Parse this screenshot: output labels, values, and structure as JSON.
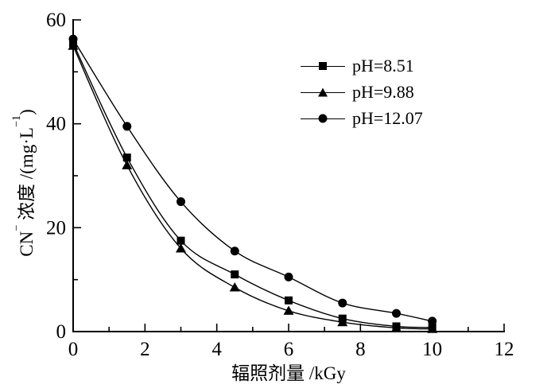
{
  "figure": {
    "background": "#ffffff",
    "ink_color": "#000000"
  },
  "chart_data": {
    "type": "line",
    "title": "",
    "xlabel": "辐照剂量 /kGy",
    "ylabel": "CN⁻ 浓度 /(mg·L⁻¹)",
    "ylabel_parts": {
      "p1": "CN",
      "s1": "−",
      "p2": " 浓度 /(mg·L",
      "s2": "−1",
      "p3": ")"
    },
    "xlim": [
      0,
      12
    ],
    "ylim": [
      0,
      60
    ],
    "x_major_ticks": [
      0,
      2,
      4,
      6,
      8,
      10,
      12
    ],
    "x_minor_ticks": [
      1,
      3,
      5,
      7,
      9,
      11
    ],
    "y_major_ticks": [
      0,
      20,
      40,
      60
    ],
    "y_minor_ticks": [
      10,
      30,
      50
    ],
    "grid": false,
    "legend_position": "upper-right-inside",
    "line_color": "#000000",
    "marker_color": "#000000",
    "x": [
      0,
      1.5,
      3,
      4.5,
      6,
      7.5,
      9,
      10
    ],
    "series": [
      {
        "name": "pH=8.51",
        "marker": "square",
        "values": [
          55.5,
          33.5,
          17.5,
          11.0,
          6.0,
          2.5,
          1.0,
          0.8
        ]
      },
      {
        "name": "pH=9.88",
        "marker": "triangle",
        "values": [
          55.0,
          32.0,
          16.0,
          8.5,
          4.0,
          1.8,
          0.7,
          0.5
        ]
      },
      {
        "name": "pH=12.07",
        "marker": "circle",
        "values": [
          56.3,
          39.5,
          25.0,
          15.5,
          10.5,
          5.5,
          3.5,
          2.0
        ]
      }
    ]
  }
}
